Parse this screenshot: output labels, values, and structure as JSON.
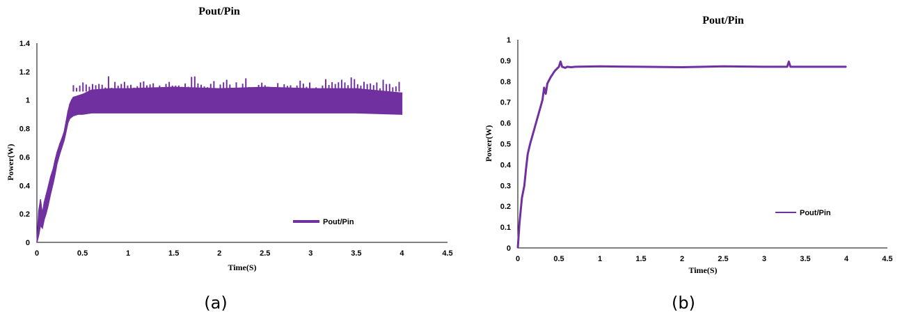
{
  "chart_data": [
    {
      "type": "line",
      "title": "Pout/Pin",
      "xlabel": "Time(S)",
      "ylabel": "Power(W)",
      "xlim": [
        0,
        4.5
      ],
      "ylim": [
        0,
        1.4
      ],
      "xticks": [
        "0",
        "0.5",
        "1",
        "1.5",
        "2",
        "2.5",
        "3",
        "3.5",
        "4",
        "4.5"
      ],
      "yticks": [
        "0",
        "0.2",
        "0.4",
        "0.6",
        "0.8",
        "1",
        "1.2",
        "1.4"
      ],
      "grid": false,
      "legend_position": "bottom-right",
      "color": "#7030A0",
      "caption": "(a)",
      "series": [
        {
          "name": "Pout/Pin",
          "x": [
            0,
            0.02,
            0.04,
            0.06,
            0.08,
            0.1,
            0.12,
            0.15,
            0.18,
            0.2,
            0.22,
            0.25,
            0.28,
            0.3,
            0.32,
            0.34,
            0.36,
            0.38,
            0.4,
            0.45,
            0.5,
            0.6,
            0.8,
            1.0,
            1.5,
            2.0,
            2.5,
            3.0,
            3.5,
            4.0
          ],
          "values": [
            0,
            0.22,
            0.3,
            0.2,
            0.28,
            0.33,
            0.38,
            0.46,
            0.52,
            0.58,
            0.63,
            0.69,
            0.74,
            0.78,
            0.85,
            0.92,
            0.97,
            1.0,
            1.02,
            1.03,
            1.04,
            1.07,
            1.08,
            1.08,
            1.09,
            1.08,
            1.09,
            1.08,
            1.08,
            1.05
          ],
          "lower": [
            0,
            0.05,
            0.12,
            0.1,
            0.16,
            0.2,
            0.25,
            0.34,
            0.42,
            0.48,
            0.55,
            0.62,
            0.68,
            0.72,
            0.78,
            0.84,
            0.87,
            0.88,
            0.89,
            0.9,
            0.9,
            0.91,
            0.91,
            0.91,
            0.91,
            0.91,
            0.91,
            0.91,
            0.91,
            0.9
          ]
        }
      ]
    },
    {
      "type": "line",
      "title": "Pout/Pin",
      "xlabel": "Time(S)",
      "ylabel": "Power(W)",
      "xlim": [
        0,
        4.5
      ],
      "ylim": [
        0,
        1
      ],
      "xticks": [
        "0",
        "0.5",
        "1",
        "1.5",
        "2",
        "2.5",
        "3",
        "3.5",
        "4",
        "4.5"
      ],
      "yticks": [
        "0",
        "0.1",
        "0.2",
        "0.3",
        "0.4",
        "0.5",
        "0.6",
        "0.7",
        "0.8",
        "0.9",
        "1"
      ],
      "grid": false,
      "legend_position": "bottom-right",
      "color": "#7030A0",
      "caption": "(b)",
      "series": [
        {
          "name": "Pout/Pin",
          "x": [
            0,
            0.02,
            0.05,
            0.08,
            0.1,
            0.12,
            0.15,
            0.2,
            0.25,
            0.3,
            0.32,
            0.34,
            0.36,
            0.4,
            0.45,
            0.5,
            0.52,
            0.54,
            0.58,
            0.6,
            0.65,
            0.7,
            1.0,
            1.5,
            2.0,
            2.5,
            3.0,
            3.28,
            3.3,
            3.32,
            3.35,
            3.5,
            4.0
          ],
          "values": [
            0,
            0.12,
            0.24,
            0.3,
            0.38,
            0.45,
            0.5,
            0.57,
            0.64,
            0.71,
            0.77,
            0.74,
            0.79,
            0.82,
            0.85,
            0.87,
            0.895,
            0.87,
            0.865,
            0.87,
            0.868,
            0.87,
            0.872,
            0.87,
            0.868,
            0.872,
            0.87,
            0.87,
            0.895,
            0.87,
            0.87,
            0.87,
            0.87
          ]
        }
      ]
    }
  ]
}
